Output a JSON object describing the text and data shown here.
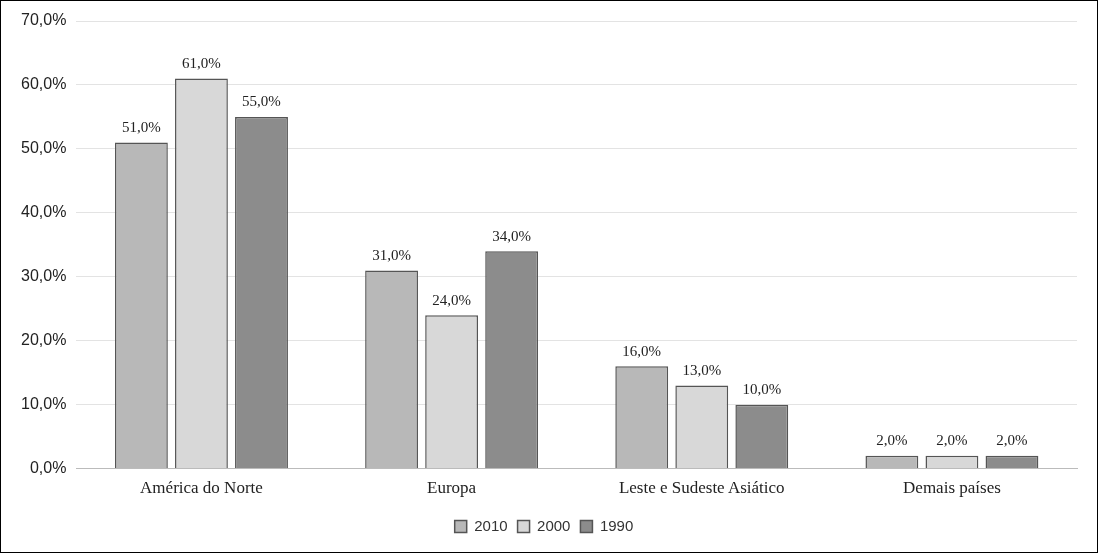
{
  "chart_data": {
    "type": "bar",
    "categories": [
      "América do Norte",
      "Europa",
      "Leste e Sudeste Asiático",
      "Demais países"
    ],
    "series": [
      {
        "name": "2010",
        "color": "#b8b8b8",
        "values": [
          51,
          31,
          16,
          2
        ],
        "value_labels": [
          "51,0%",
          "31,0%",
          "16,0%",
          "2,0%"
        ]
      },
      {
        "name": "2000",
        "color": "#d8d8d8",
        "values": [
          61,
          24,
          13,
          2
        ],
        "value_labels": [
          "61,0%",
          "24,0%",
          "13,0%",
          "2,0%"
        ]
      },
      {
        "name": "1990",
        "color": "#8c8c8c",
        "values": [
          55,
          34,
          10,
          2
        ],
        "value_labels": [
          "55,0%",
          "34,0%",
          "10,0%",
          "2,0%"
        ]
      }
    ],
    "ylim": [
      0,
      70
    ],
    "yticks": [
      {
        "value": 0,
        "label": "0,0%"
      },
      {
        "value": 10,
        "label": "10,0%"
      },
      {
        "value": 20,
        "label": "20,0%"
      },
      {
        "value": 30,
        "label": "30,0%"
      },
      {
        "value": 40,
        "label": "40,0%"
      },
      {
        "value": 50,
        "label": "50,0%"
      },
      {
        "value": 60,
        "label": "60,0%"
      },
      {
        "value": 70,
        "label": "70,0%"
      }
    ],
    "grid": "y",
    "legend": "bottom"
  }
}
